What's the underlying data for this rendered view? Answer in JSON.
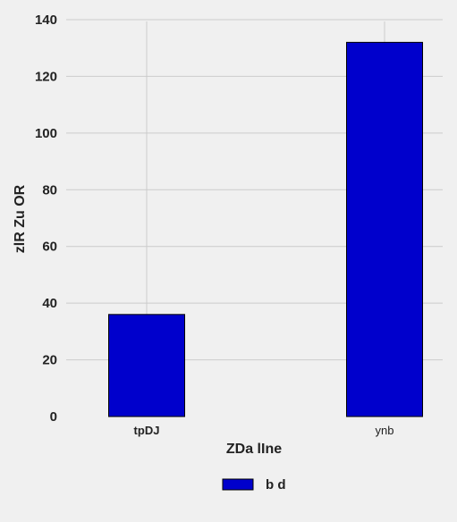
{
  "chart_data": {
    "type": "bar",
    "categories": [
      "tpDJ",
      "ynb"
    ],
    "series": [
      {
        "name": "b d",
        "values": [
          36,
          132
        ],
        "color": "#0000cc"
      }
    ],
    "xlabel": "ZDa lIne",
    "ylabel": "zlR Zu OR",
    "ylim": [
      0,
      140
    ],
    "yticks": [
      0,
      20,
      40,
      60,
      80,
      100,
      120,
      140
    ],
    "grid": true,
    "legend": "bottom-center",
    "background": "#f0f0f0",
    "grid_color": "#cbcbcb"
  }
}
